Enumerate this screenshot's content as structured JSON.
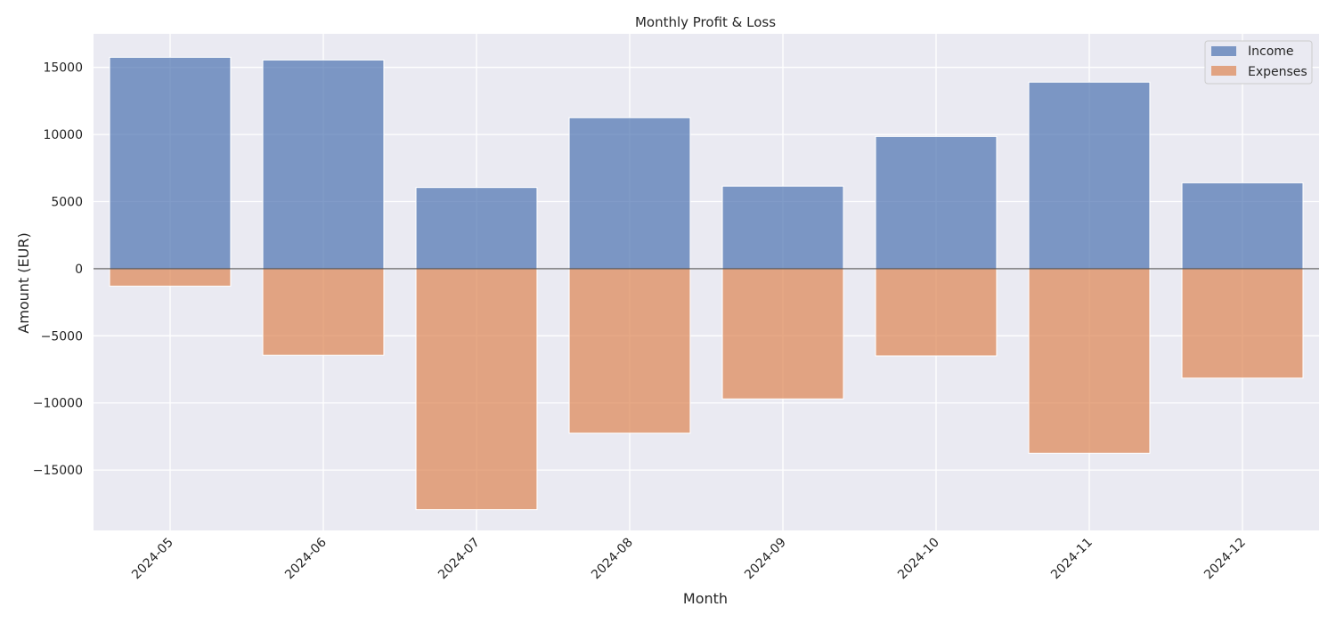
{
  "chart_data": {
    "type": "bar",
    "title": "Monthly Profit & Loss",
    "xlabel": "Month",
    "ylabel": "Amount (EUR)",
    "categories": [
      "2024-05",
      "2024-06",
      "2024-07",
      "2024-08",
      "2024-09",
      "2024-10",
      "2024-11",
      "2024-12"
    ],
    "series": [
      {
        "name": "Income",
        "color": "#4c72b0",
        "values": [
          15750,
          15550,
          6050,
          11250,
          6150,
          9850,
          13900,
          6400
        ]
      },
      {
        "name": "Expenses",
        "color": "#dd8452",
        "values": [
          -1300,
          -6450,
          -17950,
          -12250,
          -9700,
          -6500,
          -13750,
          -8150
        ]
      }
    ],
    "yticks": [
      -15000,
      -10000,
      -5000,
      0,
      5000,
      10000,
      15000
    ],
    "ytick_labels": [
      "−15000",
      "−10000",
      "−5000",
      "0",
      "5000",
      "10000",
      "15000"
    ],
    "ylim": [
      -19500,
      17500
    ],
    "grid": true,
    "legend_position": "top-right",
    "background": "#eaeaf2"
  }
}
